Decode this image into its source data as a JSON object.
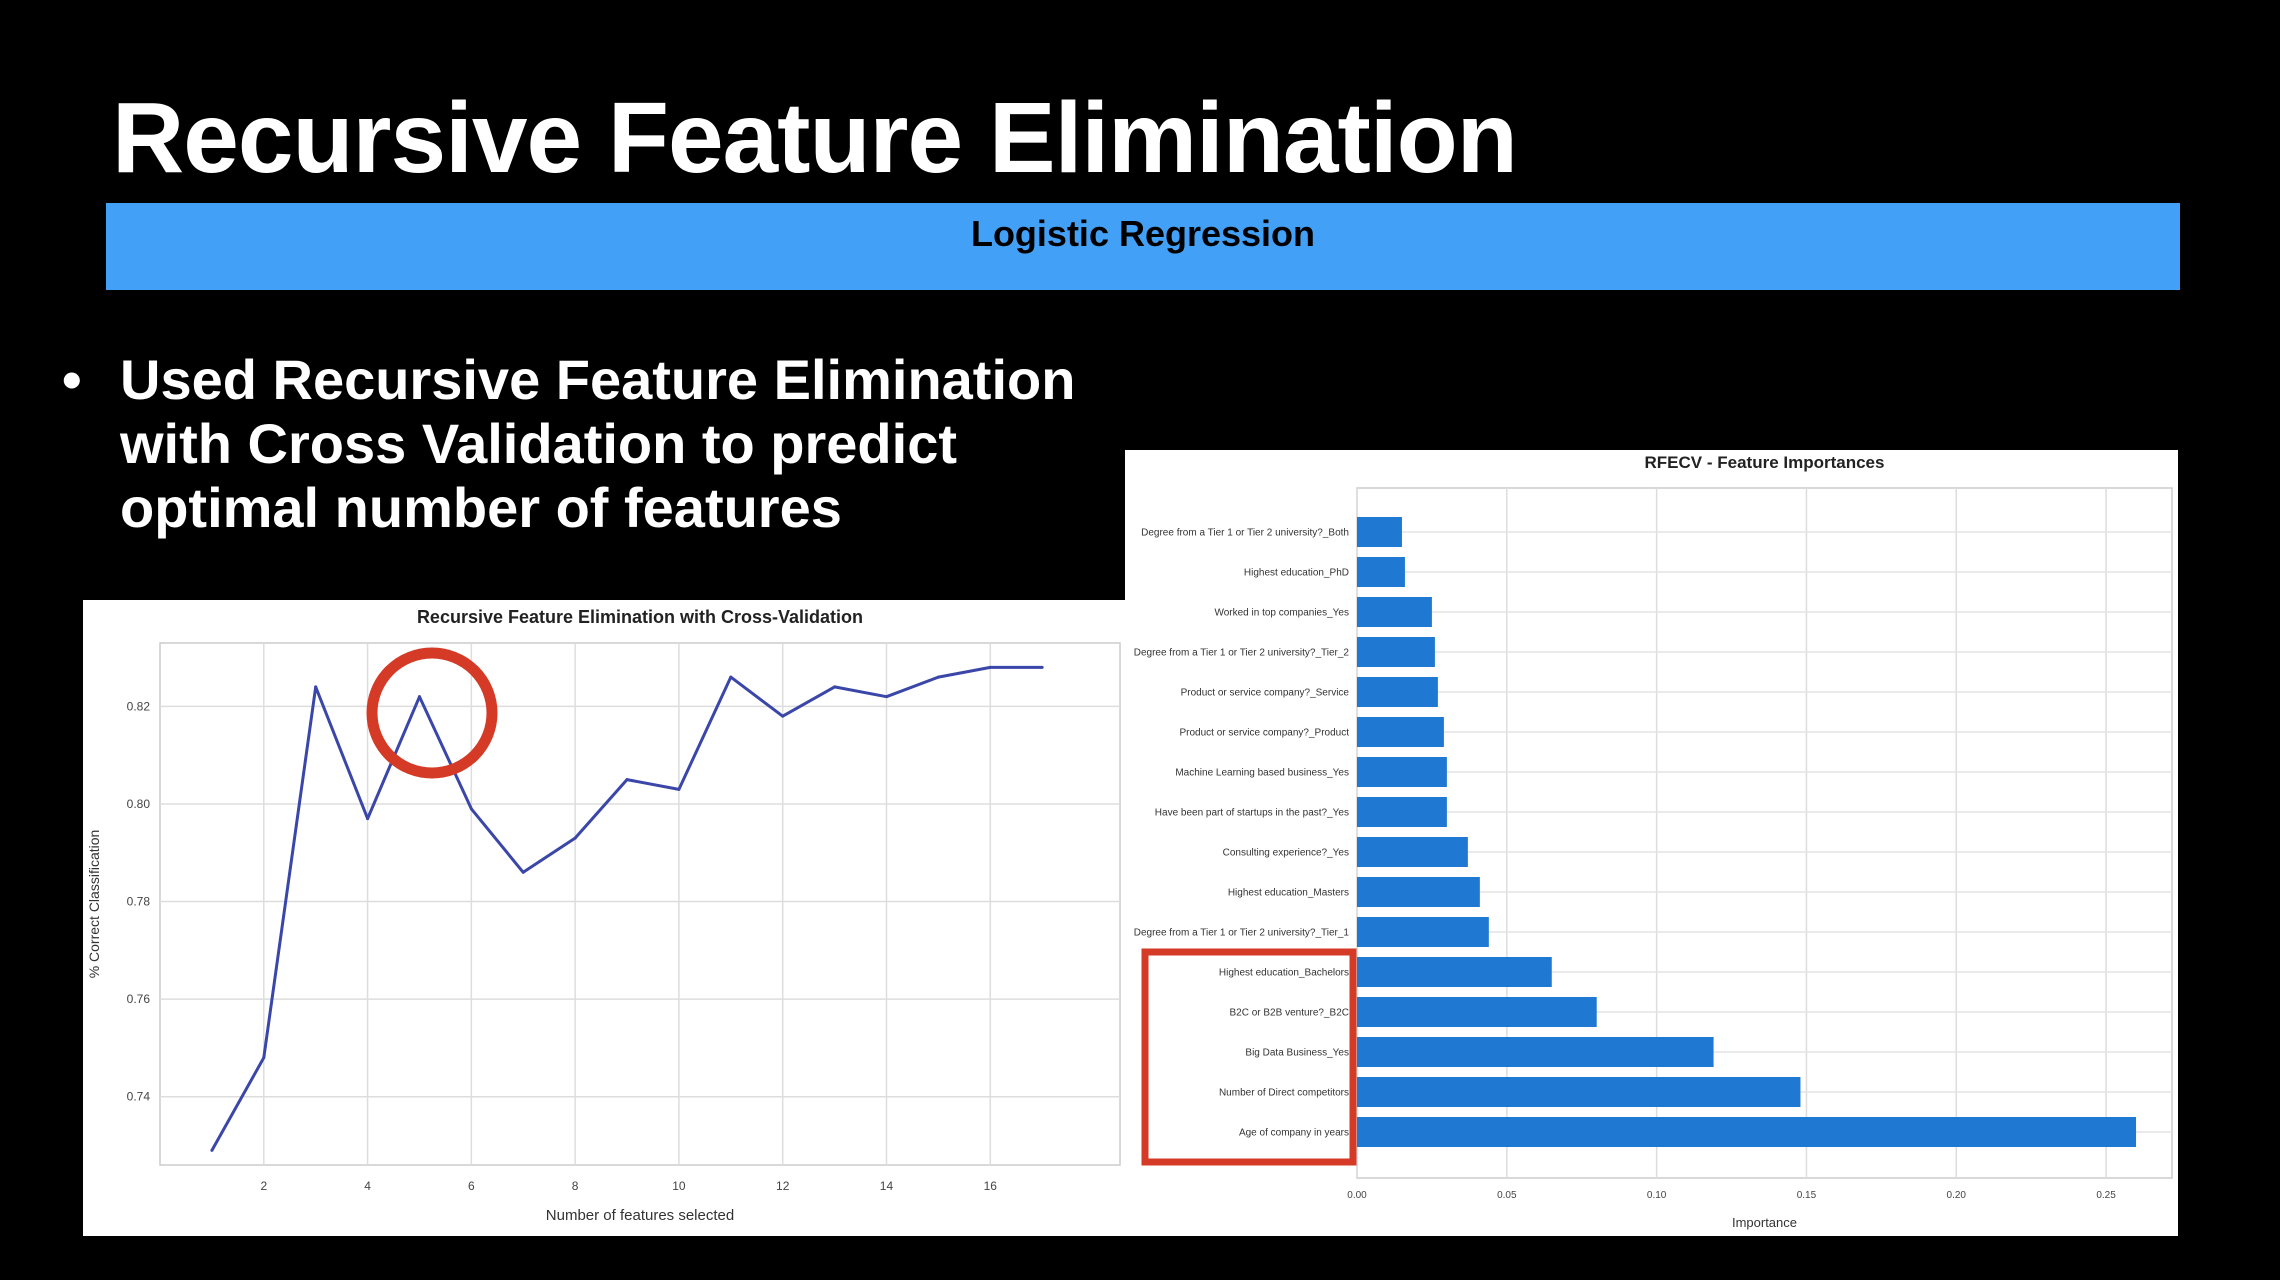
{
  "slide": {
    "title": "Recursive Feature Elimination",
    "subtitle": "Logistic Regression",
    "bullet": "Used Recursive Feature Elimination with Cross Validation to predict optimal number of features"
  },
  "colors": {
    "banner": "#42a0f6",
    "line": "#3a46a8",
    "bar": "#1f78d1",
    "highlight": "#d43a26"
  },
  "chart_data": [
    {
      "type": "line",
      "title": "Recursive Feature Elimination with Cross-Validation",
      "xlabel": "Number of features selected",
      "ylabel": "% Correct Classification",
      "x": [
        1,
        2,
        3,
        4,
        5,
        6,
        7,
        8,
        9,
        10,
        11,
        12,
        13,
        14,
        15,
        16,
        17
      ],
      "y": [
        0.729,
        0.748,
        0.824,
        0.797,
        0.822,
        0.799,
        0.786,
        0.793,
        0.805,
        0.803,
        0.826,
        0.818,
        0.824,
        0.822,
        0.826,
        0.828,
        0.828
      ],
      "xticks": [
        "2",
        "4",
        "6",
        "8",
        "10",
        "12",
        "14",
        "16"
      ],
      "yticks": [
        "0.74",
        "0.76",
        "0.78",
        "0.80",
        "0.82"
      ],
      "xlim": [
        0,
        18.5
      ],
      "ylim": [
        0.726,
        0.833
      ],
      "grid": true,
      "annotation": "red circle around x=5"
    },
    {
      "type": "bar",
      "orientation": "horizontal",
      "title": "RFECV - Feature Importances",
      "xlabel": "Importance",
      "ylabel": "",
      "categories": [
        "Degree from a Tier 1 or Tier 2 university?_Both",
        "Highest education_PhD",
        "Worked in top companies_Yes",
        "Degree from a Tier 1 or Tier 2 university?_Tier_2",
        "Product or service company?_Service",
        "Product or service company?_Product",
        "Machine Learning based business_Yes",
        "Have been part of startups in the past?_Yes",
        "Consulting experience?_Yes",
        "Highest education_Masters",
        "Degree from a Tier 1 or Tier 2 university?_Tier_1",
        "Highest education_Bachelors",
        "B2C or B2B venture?_B2C",
        "Big Data Business_Yes",
        "Number of Direct competitors",
        "Age of company in years"
      ],
      "values": [
        0.015,
        0.016,
        0.025,
        0.026,
        0.027,
        0.029,
        0.03,
        0.03,
        0.037,
        0.041,
        0.044,
        0.065,
        0.08,
        0.119,
        0.148,
        0.26
      ],
      "xticks": [
        "0.00",
        "0.05",
        "0.10",
        "0.15",
        "0.20",
        "0.25"
      ],
      "xlim": [
        0,
        0.272
      ],
      "grid": true,
      "annotation": "red rectangle around the last five category labels"
    }
  ]
}
